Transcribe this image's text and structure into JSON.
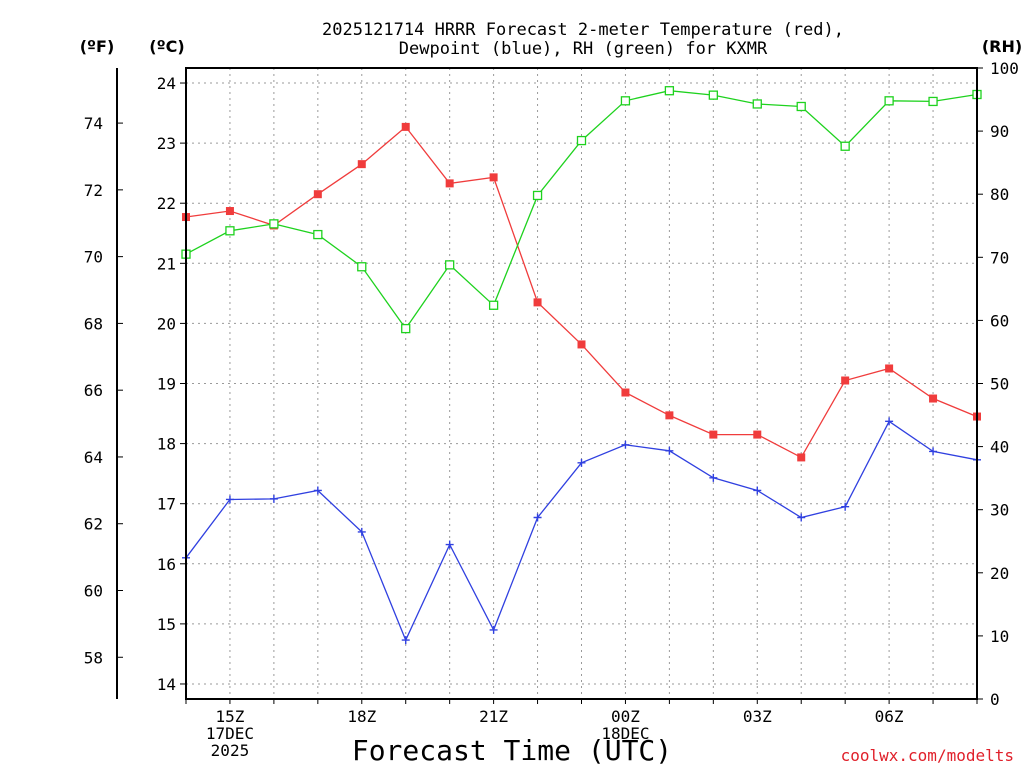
{
  "chart_data": {
    "type": "line",
    "title_line1": "2025121714 HRRR Forecast 2-meter Temperature (red),",
    "title_line2": "Dewpoint (blue), RH (green) for KXMR",
    "xlabel": "Forecast Time (UTC)",
    "credit": "coolwx.com/modelts",
    "units": {
      "fahrenheit": "(ºF)",
      "celsius": "(ºC)",
      "rh": "(RH)"
    },
    "x_hours": [
      14,
      15,
      16,
      17,
      18,
      19,
      20,
      21,
      22,
      23,
      24,
      25,
      26,
      27,
      28,
      29,
      30,
      31,
      32
    ],
    "x_ticks": [
      {
        "hour": 15,
        "lines": [
          "15Z",
          "17DEC",
          "2025"
        ]
      },
      {
        "hour": 18,
        "lines": [
          "18Z"
        ]
      },
      {
        "hour": 21,
        "lines": [
          "21Z"
        ]
      },
      {
        "hour": 24,
        "lines": [
          "00Z",
          "18DEC"
        ]
      },
      {
        "hour": 27,
        "lines": [
          "03Z"
        ]
      },
      {
        "hour": 30,
        "lines": [
          "06Z"
        ]
      }
    ],
    "xlim": [
      14,
      32
    ],
    "celsius_ylim": [
      13.75,
      24.25
    ],
    "celsius_ticks": [
      "14",
      "15",
      "16",
      "17",
      "18",
      "19",
      "20",
      "21",
      "22",
      "23",
      "24"
    ],
    "fahrenheit_ticks": [
      "58",
      "60",
      "62",
      "64",
      "66",
      "68",
      "70",
      "72",
      "74"
    ],
    "rh_ylim": [
      0,
      100
    ],
    "rh_ticks": [
      "0",
      "10",
      "20",
      "30",
      "40",
      "50",
      "60",
      "70",
      "80",
      "90",
      "100"
    ],
    "series": [
      {
        "name": "2-meter Temperature",
        "axis": "celsius",
        "color": "#f03c3c",
        "marker": "filled-square",
        "values": [
          21.77,
          21.87,
          21.63,
          22.15,
          22.65,
          23.27,
          22.33,
          22.43,
          20.35,
          19.65,
          18.85,
          18.47,
          18.15,
          18.15,
          17.77,
          19.05,
          19.25,
          18.75,
          18.45
        ]
      },
      {
        "name": "Dewpoint",
        "axis": "celsius",
        "color": "#3040e0",
        "marker": "plus",
        "values": [
          16.1,
          17.07,
          17.08,
          17.22,
          16.53,
          14.73,
          16.32,
          14.9,
          16.77,
          17.68,
          17.98,
          17.88,
          17.43,
          17.22,
          16.77,
          16.95,
          18.37,
          17.87,
          17.73
        ]
      },
      {
        "name": "RH",
        "axis": "rh",
        "color": "#1ed21e",
        "marker": "open-square",
        "values": [
          70.5,
          74.2,
          75.3,
          73.6,
          68.5,
          58.7,
          68.8,
          62.4,
          79.8,
          88.5,
          94.8,
          96.4,
          95.7,
          94.3,
          93.9,
          87.6,
          94.8,
          94.7,
          95.8
        ]
      }
    ]
  }
}
